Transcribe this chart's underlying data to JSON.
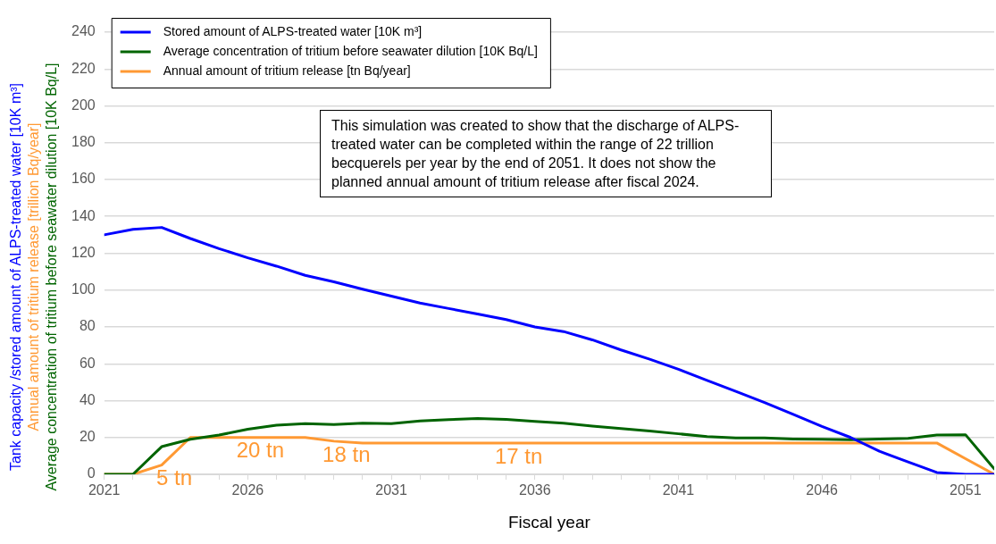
{
  "chart_data": {
    "type": "line",
    "xlabel": "Fiscal year",
    "ylabel": "Tank capacity /stored amount of ALPS-treated water [10K m³]\nAnnual amount of tritium release [trillion Bq/year]\nAverage concentration of tritium before seawater dilution [10K Bq/L]",
    "x": [
      2021,
      2022,
      2023,
      2024,
      2025,
      2026,
      2027,
      2028,
      2029,
      2030,
      2031,
      2032,
      2033,
      2034,
      2035,
      2036,
      2037,
      2038,
      2039,
      2040,
      2041,
      2042,
      2043,
      2044,
      2045,
      2046,
      2047,
      2048,
      2049,
      2050,
      2051,
      2052
    ],
    "series": [
      {
        "name": "Stored amount of ALPS-treated water [10K m³]",
        "color": "#0000ff",
        "values": [
          130,
          133,
          134,
          128,
          122.5,
          117.5,
          113,
          108,
          104.5,
          100.5,
          96.7,
          93,
          90,
          87,
          84,
          80,
          77.5,
          73,
          67.5,
          62.5,
          57,
          51,
          45,
          39,
          32.5,
          26,
          20,
          12.5,
          6.7,
          1,
          0,
          0
        ]
      },
      {
        "name": "Average concentration of tritium before seawater dilution [10K Bq/L]",
        "color": "#006400",
        "values": [
          0,
          0,
          15,
          19,
          21.3,
          24.5,
          26.7,
          27.5,
          27,
          27.8,
          27.5,
          29,
          29.7,
          30.3,
          29.8,
          28.7,
          27.8,
          26.2,
          24.8,
          23.5,
          22,
          20.5,
          19.7,
          19.7,
          19.2,
          19,
          18.8,
          19.2,
          19.5,
          21.3,
          21.5,
          3
        ]
      },
      {
        "name": "Annual amount of tritium release [tn Bq/year]",
        "color": "#ff9933",
        "values": [
          0,
          0,
          5,
          20,
          20,
          20,
          20,
          20,
          18,
          17,
          17,
          17,
          17,
          17,
          17,
          17,
          17,
          17,
          17,
          17,
          17,
          17,
          17,
          17,
          17,
          17,
          17,
          17,
          17,
          17,
          8.5,
          0
        ]
      }
    ],
    "xlim": [
      2021,
      2052
    ],
    "xticks": [
      2021,
      {
        "value": 2022,
        "label": null
      },
      {
        "value": 2023,
        "label": null
      },
      {
        "value": 2024,
        "label": null
      },
      {
        "value": 2025,
        "label": null
      },
      2026,
      {
        "value": 2027,
        "label": null
      },
      {
        "value": 2028,
        "label": null
      },
      {
        "value": 2029,
        "label": null
      },
      {
        "value": 2030,
        "label": null
      },
      2031,
      {
        "value": 2032,
        "label": null
      },
      {
        "value": 2033,
        "label": null
      },
      {
        "value": 2034,
        "label": null
      },
      {
        "value": 2035,
        "label": null
      },
      2036,
      {
        "value": 2037,
        "label": null
      },
      {
        "value": 2038,
        "label": null
      },
      {
        "value": 2039,
        "label": null
      },
      {
        "value": 2040,
        "label": null
      },
      2041,
      {
        "value": 2042,
        "label": null
      },
      {
        "value": 2043,
        "label": null
      },
      {
        "value": 2044,
        "label": null
      },
      {
        "value": 2045,
        "label": null
      },
      2046,
      {
        "value": 2047,
        "label": null
      },
      {
        "value": 2048,
        "label": null
      },
      {
        "value": 2049,
        "label": null
      },
      {
        "value": 2050,
        "label": null
      },
      2051
    ],
    "ylim": [
      0,
      240
    ],
    "yticks": [
      0,
      20,
      40,
      60,
      80,
      100,
      120,
      140,
      160,
      180,
      200,
      220,
      240
    ],
    "grid": "y",
    "legend": "top left",
    "marker": "none",
    "line_style": "solid",
    "annotations": [
      {
        "text": "5 tn",
        "x": 2023,
        "y": 5
      },
      {
        "text": "20 tn",
        "x": 2026,
        "y": 20
      },
      {
        "text": "18 tn",
        "x": 2029,
        "y": 18
      },
      {
        "text": "17 tn",
        "x": 2035,
        "y": 17
      },
      "This simulation was created to show that the discharge of ALPS-treated water can be completed within the range of 22 trillion becquerels per year by the end of 2051. It does not show the planned annual amount of tritium release after fiscal 2024."
    ]
  }
}
